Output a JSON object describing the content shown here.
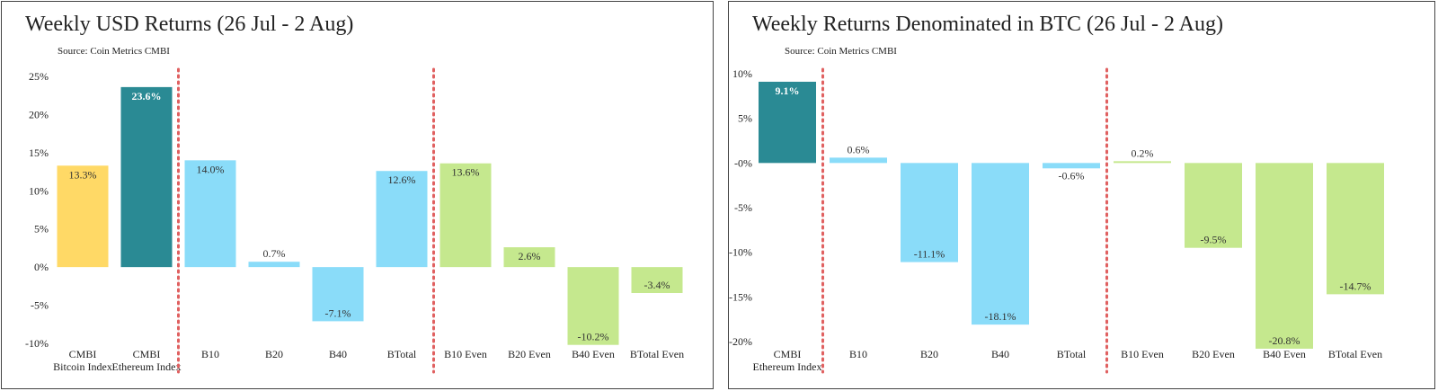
{
  "chart_data": [
    {
      "type": "bar",
      "title": "Weekly USD Returns (26 Jul - 2 Aug)",
      "source": "Source: Coin Metrics CMBI",
      "categories": [
        [
          "CMBI",
          "Bitcoin Index"
        ],
        [
          "CMBI",
          "Ethereum Index"
        ],
        [
          "B10"
        ],
        [
          "B20"
        ],
        [
          "B40"
        ],
        [
          "BTotal"
        ],
        [
          "B10 Even"
        ],
        [
          "B20 Even"
        ],
        [
          "B40 Even"
        ],
        [
          "BTotal Even"
        ]
      ],
      "values": [
        13.3,
        23.6,
        14.0,
        0.7,
        -7.1,
        12.6,
        13.6,
        2.6,
        -10.2,
        -3.4
      ],
      "value_labels": [
        "13.3%",
        "23.6%",
        "14.0%",
        "0.7%",
        "-7.1%",
        "12.6%",
        "13.6%",
        "2.6%",
        "-10.2%",
        "-3.4%"
      ],
      "colors": [
        "#FFD966",
        "#2A8A94",
        "#8ADCF9",
        "#8ADCF9",
        "#8ADCF9",
        "#8ADCF9",
        "#C5E88E",
        "#C5E88E",
        "#C5E88E",
        "#C5E88E"
      ],
      "ylim": [
        -12,
        25
      ],
      "yticks": [
        25,
        20,
        15,
        10,
        5,
        0,
        -5,
        -10
      ],
      "ytick_labels": [
        "25%",
        "20%",
        "15%",
        "10%",
        "5%",
        "0%",
        "-5%",
        "-10%"
      ],
      "separators_after": [
        1,
        5
      ],
      "grid": false
    },
    {
      "type": "bar",
      "title": "Weekly Returns Denominated in BTC (26 Jul - 2 Aug)",
      "source": "Source: Coin Metrics CMBI",
      "categories": [
        [
          "CMBI",
          "Ethereum Index"
        ],
        [
          "B10"
        ],
        [
          "B20"
        ],
        [
          "B40"
        ],
        [
          "BTotal"
        ],
        [
          "B10 Even"
        ],
        [
          "B20 Even"
        ],
        [
          "B40 Even"
        ],
        [
          "BTotal Even"
        ]
      ],
      "values": [
        9.1,
        0.6,
        -11.1,
        -18.1,
        -0.6,
        0.2,
        -9.5,
        -20.8,
        -14.7
      ],
      "value_labels": [
        "9.1%",
        "0.6%",
        "-11.1%",
        "-18.1%",
        "-0.6%",
        "0.2%",
        "-9.5%",
        "-20.8%",
        "-14.7%"
      ],
      "colors": [
        "#2A8A94",
        "#8ADCF9",
        "#8ADCF9",
        "#8ADCF9",
        "#8ADCF9",
        "#C5E88E",
        "#C5E88E",
        "#C5E88E",
        "#C5E88E"
      ],
      "ylim": [
        -22,
        11
      ],
      "yticks": [
        10,
        5,
        0,
        -5,
        -10,
        -15,
        -20
      ],
      "ytick_labels": [
        "10%",
        "5%",
        "-0%",
        "-5%",
        "-10%",
        "-15%",
        "-20%"
      ],
      "separators_after": [
        0,
        4
      ],
      "grid": false
    }
  ],
  "colors": {
    "separator": "#E06060",
    "label_on_dark": "#ffffff",
    "label_default": "#333333"
  }
}
